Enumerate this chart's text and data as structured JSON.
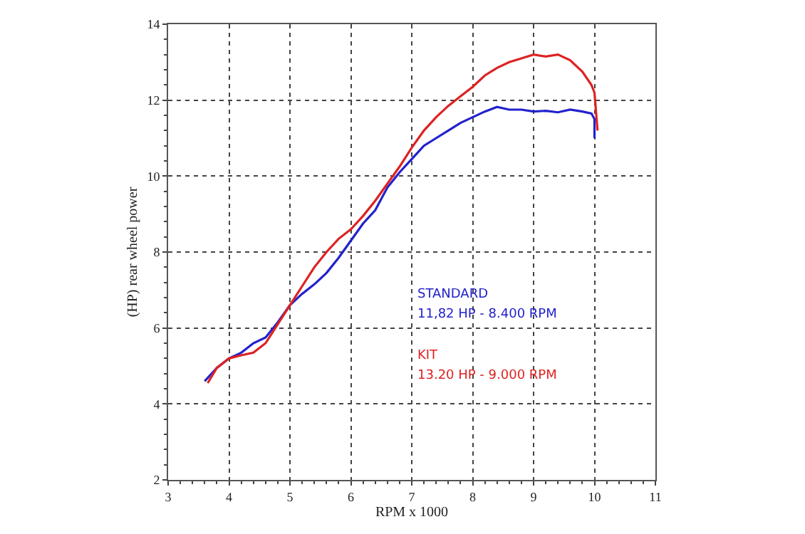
{
  "chart_data": {
    "type": "line",
    "xlabel": "RPM x 1000",
    "ylabel": "(HP) rear wheel power",
    "xlim": [
      3,
      11
    ],
    "xticks": [
      3,
      4,
      5,
      6,
      7,
      8,
      9,
      10,
      11
    ],
    "ylim": [
      2,
      14
    ],
    "yticks": [
      2,
      4,
      6,
      8,
      10,
      12,
      14
    ],
    "grid": true,
    "line_style": "solid",
    "marker": "none",
    "legend": false,
    "series": [
      {
        "name": "STANDARD",
        "color": "#2222cc",
        "x": [
          3.6,
          3.8,
          4.0,
          4.2,
          4.4,
          4.6,
          4.8,
          5.0,
          5.2,
          5.4,
          5.6,
          5.8,
          6.0,
          6.2,
          6.4,
          6.6,
          6.8,
          7.0,
          7.2,
          7.4,
          7.6,
          7.8,
          8.0,
          8.2,
          8.4,
          8.6,
          8.8,
          9.0,
          9.2,
          9.4,
          9.6,
          9.8,
          9.95,
          10.0,
          10.0
        ],
        "values": [
          4.6,
          4.95,
          5.2,
          5.35,
          5.6,
          5.75,
          6.15,
          6.6,
          6.9,
          7.15,
          7.45,
          7.85,
          8.3,
          8.75,
          9.1,
          9.7,
          10.1,
          10.45,
          10.8,
          11.0,
          11.2,
          11.4,
          11.55,
          11.7,
          11.82,
          11.75,
          11.75,
          11.7,
          11.72,
          11.68,
          11.75,
          11.7,
          11.65,
          11.5,
          11.0
        ]
      },
      {
        "name": "KIT",
        "color": "#dd2222",
        "x": [
          3.65,
          3.8,
          4.0,
          4.2,
          4.4,
          4.6,
          4.8,
          5.0,
          5.2,
          5.4,
          5.6,
          5.8,
          6.0,
          6.2,
          6.4,
          6.6,
          6.8,
          7.0,
          7.2,
          7.4,
          7.6,
          7.8,
          8.0,
          8.2,
          8.4,
          8.6,
          8.8,
          9.0,
          9.2,
          9.4,
          9.6,
          9.8,
          9.95,
          10.0,
          10.05
        ],
        "values": [
          4.55,
          4.95,
          5.2,
          5.28,
          5.35,
          5.6,
          6.1,
          6.6,
          7.1,
          7.6,
          8.0,
          8.35,
          8.6,
          8.95,
          9.35,
          9.8,
          10.25,
          10.75,
          11.2,
          11.55,
          11.85,
          12.1,
          12.35,
          12.65,
          12.85,
          13.0,
          13.1,
          13.2,
          13.15,
          13.2,
          13.05,
          12.75,
          12.4,
          12.2,
          11.2
        ]
      }
    ],
    "annotations": [
      "11,82 HP - 8.400 RPM",
      "13.20 HP - 9.000 RPM"
    ]
  }
}
